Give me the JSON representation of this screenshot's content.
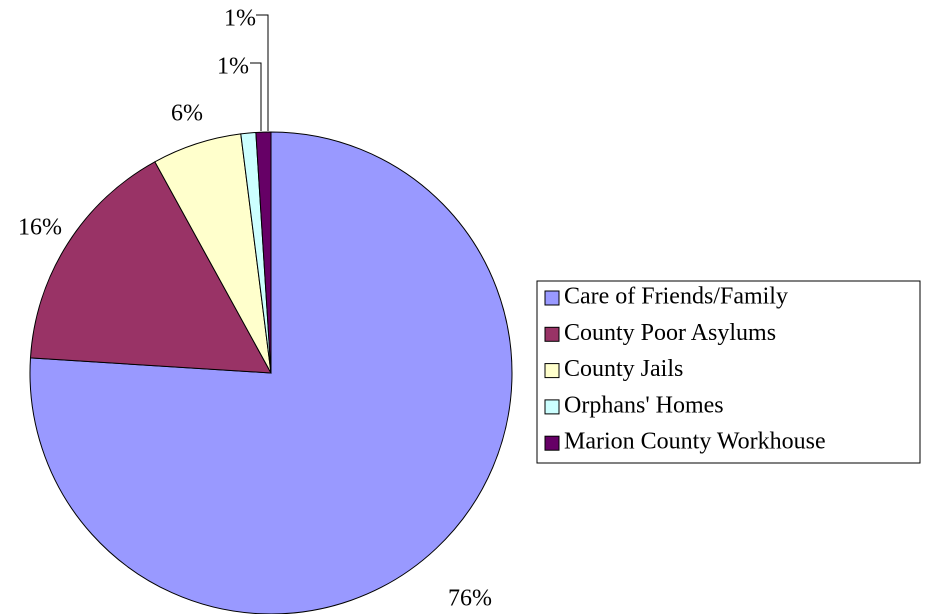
{
  "chart_data": {
    "type": "pie",
    "categories": [
      "Care of Friends/Family",
      "County Poor Asylums",
      "County Jails",
      "Orphans' Homes",
      "Marion County Workhouse"
    ],
    "values": [
      76,
      16,
      6,
      1,
      1
    ],
    "value_labels": [
      "76%",
      "16%",
      "6%",
      "1%",
      "1%"
    ],
    "colors": [
      "#9999ff",
      "#993366",
      "#ffffcc",
      "#ccffff",
      "#660066"
    ],
    "legend": "right"
  }
}
